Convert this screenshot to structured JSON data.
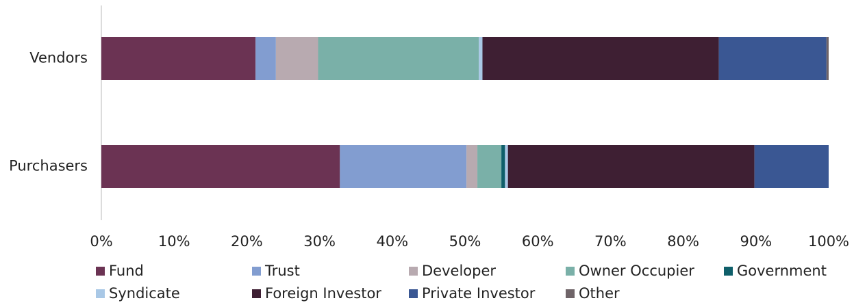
{
  "chart_data": {
    "type": "stacked_barh",
    "categories": [
      "Vendors",
      "Purchasers"
    ],
    "series": [
      {
        "name": "Fund",
        "color": "#6b3353",
        "values": [
          21.2,
          32.8
        ]
      },
      {
        "name": "Trust",
        "color": "#829dd0",
        "values": [
          2.8,
          17.4
        ]
      },
      {
        "name": "Developer",
        "color": "#b8aab0",
        "values": [
          5.8,
          1.5
        ]
      },
      {
        "name": "Owner Occupier",
        "color": "#7ab0a8",
        "values": [
          22.1,
          3.3
        ]
      },
      {
        "name": "Government",
        "color": "#0f5f6a",
        "values": [
          0,
          0.5
        ]
      },
      {
        "name": "Syndicate",
        "color": "#a9c8e6",
        "values": [
          0.5,
          0.4
        ]
      },
      {
        "name": "Foreign Investor",
        "color": "#3e1f33",
        "values": [
          32.5,
          33.9
        ]
      },
      {
        "name": "Private Investor",
        "color": "#3a5793",
        "values": [
          14.8,
          10.2
        ]
      },
      {
        "name": "Other",
        "color": "#6f6468",
        "values": [
          0.3,
          0
        ]
      }
    ],
    "xlim": [
      0,
      100
    ],
    "xticks": [
      {
        "value": 0,
        "label": "0%"
      },
      {
        "value": 10,
        "label": "10%"
      },
      {
        "value": 20,
        "label": "20%"
      },
      {
        "value": 30,
        "label": "30%"
      },
      {
        "value": 40,
        "label": "40%"
      },
      {
        "value": 50,
        "label": "50%"
      },
      {
        "value": 60,
        "label": "60%"
      },
      {
        "value": 70,
        "label": "70%"
      },
      {
        "value": 80,
        "label": "80%"
      },
      {
        "value": 90,
        "label": "90%"
      },
      {
        "value": 100,
        "label": "100%"
      }
    ],
    "legend": "bottom"
  }
}
